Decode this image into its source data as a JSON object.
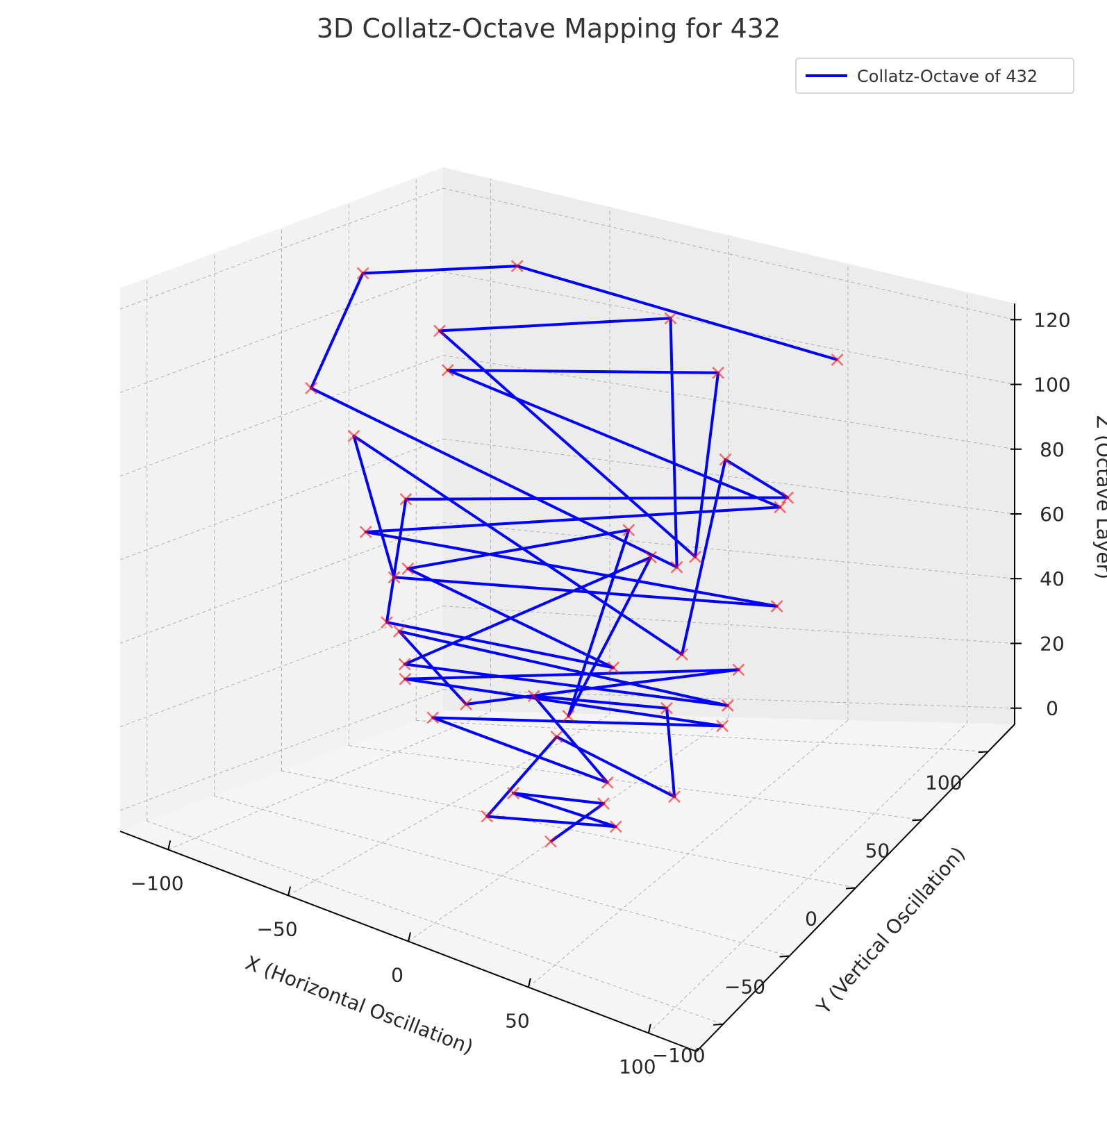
{
  "chart_data": {
    "type": "line",
    "projection": "3d",
    "title": "3D Collatz-Octave Mapping for 432",
    "xlabel": "X (Horizontal Oscillation)",
    "ylabel": "Y (Vertical Oscillation)",
    "zlabel": "Z (Octave Layer)",
    "xlim": [
      -120,
      120
    ],
    "ylim": [
      -120,
      120
    ],
    "zlim": [
      -5,
      125
    ],
    "x_ticks": [
      -100,
      -50,
      0,
      50,
      100
    ],
    "y_ticks": [
      -100,
      -50,
      0,
      50,
      100
    ],
    "z_ticks": [
      0,
      20,
      40,
      60,
      80,
      100,
      120
    ],
    "x_tick_labels": [
      "−100",
      "−50",
      "0",
      "50",
      "100"
    ],
    "y_tick_labels": [
      "−100",
      "−50",
      "0",
      "50",
      "100"
    ],
    "z_tick_labels": [
      "0",
      "20",
      "40",
      "60",
      "80",
      "100",
      "120"
    ],
    "grid": true,
    "legend": {
      "position": "top-right"
    },
    "series": [
      {
        "name": "Collatz-Octave of 432",
        "line_color": "#0000ff",
        "marker": "x",
        "marker_color": "#ff0000",
        "points": [
          [
            76.6,
            64.3,
            121.0
          ],
          [
            -59.9,
            68.5,
            118.0
          ],
          [
            -100.6,
            26.0,
            115.0
          ],
          [
            -64.7,
            -76.6,
            112.0
          ],
          [
            82.8,
            -67.6,
            109.0
          ],
          [
            -12.7,
            99.0,
            106.0
          ],
          [
            -77.5,
            42.0,
            103.0
          ],
          [
            75.5,
            -40.6,
            100.0
          ],
          [
            11.7,
            91.1,
            97.0
          ],
          [
            -73.7,
            41.3,
            94.0
          ],
          [
            74.3,
            25.4,
            91.0
          ],
          [
            -33.0,
            -92.6,
            88.0
          ],
          [
            98.9,
            -21.3,
            85.0
          ],
          [
            -18.0,
            -98.3,
            82.0
          ],
          [
            -94.4,
            8.2,
            79.0
          ],
          [
            76.7,
            -52.7,
            76.0
          ],
          [
            13.6,
            93.1,
            73.0
          ],
          [
            46.1,
            81.7,
            70.0
          ],
          [
            -73.6,
            9.9,
            67.0
          ],
          [
            -28.6,
            -84.8,
            64.0
          ],
          [
            44.2,
            -45.8,
            61.0
          ],
          [
            -56.3,
            -19.4,
            58.0
          ],
          [
            -16.4,
            74.3,
            55.0
          ],
          [
            37.3,
            -67.1,
            52.0
          ],
          [
            -6.9,
            73.8,
            49.0
          ],
          [
            -35.2,
            -59.6,
            46.0
          ],
          [
            69.8,
            -5.9,
            43.0
          ],
          [
            -62.6,
            -14.6,
            40.0
          ],
          [
            -16.5,
            -47.2,
            37.0
          ],
          [
            48.0,
            41.4,
            34.0
          ],
          [
            -54.9,
            -24.0,
            31.0
          ],
          [
            56.5,
            14.0,
            28.0
          ],
          [
            -40.0,
            -30.0,
            25.0
          ],
          [
            33.8,
            -31.5,
            22.0
          ],
          [
            -32.1,
            31.4,
            19.0
          ],
          [
            12.3,
            51.5,
            16.0
          ],
          [
            47.9,
            -6.6,
            13.0
          ],
          [
            -21.5,
            29.5,
            10.0
          ],
          [
            -10.8,
            -41.7,
            7.0
          ],
          [
            28.3,
            -15.3,
            4.0
          ],
          [
            -24.2,
            1.9,
            1.0
          ],
          [
            4.6,
            17.9,
            -2.0
          ],
          [
            1.5,
            -16.1,
            -4.0
          ]
        ]
      }
    ]
  }
}
